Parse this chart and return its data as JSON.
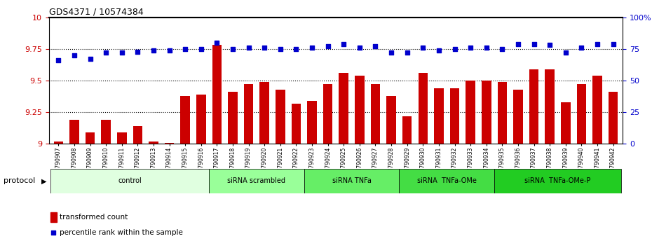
{
  "title": "GDS4371 / 10574384",
  "samples": [
    "GSM790907",
    "GSM790908",
    "GSM790909",
    "GSM790910",
    "GSM790911",
    "GSM790912",
    "GSM790913",
    "GSM790914",
    "GSM790915",
    "GSM790916",
    "GSM790917",
    "GSM790918",
    "GSM790919",
    "GSM790920",
    "GSM790921",
    "GSM790922",
    "GSM790923",
    "GSM790924",
    "GSM790925",
    "GSM790926",
    "GSM790927",
    "GSM790928",
    "GSM790929",
    "GSM790930",
    "GSM790931",
    "GSM790932",
    "GSM790933",
    "GSM790934",
    "GSM790935",
    "GSM790936",
    "GSM790937",
    "GSM790938",
    "GSM790939",
    "GSM790940",
    "GSM790941",
    "GSM790942"
  ],
  "bar_values": [
    9.02,
    9.19,
    9.09,
    9.19,
    9.09,
    9.14,
    9.02,
    9.01,
    9.38,
    9.39,
    9.78,
    9.41,
    9.47,
    9.49,
    9.43,
    9.32,
    9.34,
    9.47,
    9.56,
    9.54,
    9.47,
    9.38,
    9.22,
    9.56,
    9.44,
    9.44,
    9.5,
    9.5,
    9.49,
    9.43,
    9.59,
    9.59,
    9.33,
    9.47,
    9.54,
    9.41
  ],
  "percentile_values": [
    66,
    70,
    67,
    72,
    72,
    73,
    74,
    74,
    75,
    75,
    80,
    75,
    76,
    76,
    75,
    75,
    76,
    77,
    79,
    76,
    77,
    72,
    72,
    76,
    74,
    75,
    76,
    76,
    75,
    79,
    79,
    78,
    72,
    76,
    79,
    79
  ],
  "ylim_left": [
    9.0,
    10.0
  ],
  "ylim_right": [
    0,
    100
  ],
  "yticks_left": [
    9.0,
    9.25,
    9.5,
    9.75,
    10.0
  ],
  "yticks_left_labels": [
    "9",
    "9.25",
    "9.5",
    "9.75",
    "10"
  ],
  "yticks_right": [
    0,
    25,
    50,
    75,
    100
  ],
  "yticks_right_labels": [
    "0",
    "25",
    "50",
    "75",
    "100%"
  ],
  "bar_color": "#cc0000",
  "dot_color": "#0000cc",
  "groups": [
    {
      "label": "control",
      "start": 0,
      "end": 9,
      "color": "#e0ffe0"
    },
    {
      "label": "siRNA scrambled",
      "start": 10,
      "end": 15,
      "color": "#99ff99"
    },
    {
      "label": "siRNA TNFa",
      "start": 16,
      "end": 21,
      "color": "#66ee66"
    },
    {
      "label": "siRNA  TNFa-OMe",
      "start": 22,
      "end": 27,
      "color": "#44dd44"
    },
    {
      "label": "siRNA  TNFa-OMe-P",
      "start": 28,
      "end": 35,
      "color": "#22cc22"
    }
  ],
  "legend_bar_label": "transformed count",
  "legend_dot_label": "percentile rank within the sample",
  "hline_yticks": [
    9.25,
    9.5,
    9.75
  ]
}
